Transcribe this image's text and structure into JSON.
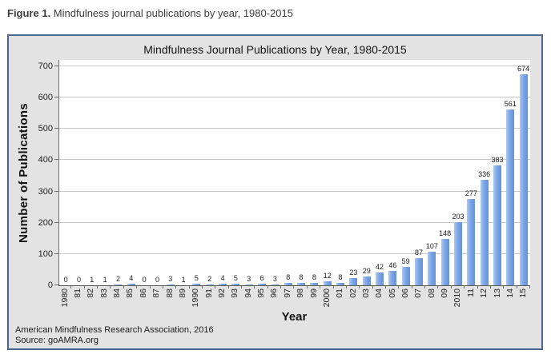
{
  "figure": {
    "caption_label": "Figure 1.",
    "caption_text": " Mindfulness journal publications by year, 1980-2015"
  },
  "chart": {
    "title": "Mindfulness Journal Publications by Year, 1980-2015",
    "x_axis_title": "Year",
    "y_axis_title": "Number of Publications",
    "source_line1": "American Mindfulness Research Association, 2016",
    "source_line2": "Source: goAMRA.org",
    "colors": {
      "panel_bg": "#e3e3e3",
      "panel_border": "#4a688f",
      "plot_bg": "#ffffff",
      "gridline": "#c9c9c9",
      "axis_line": "#707070",
      "bar_left": "#adc9f2",
      "bar_mid": "#7ca5e7",
      "bar_right": "#6591d8"
    }
  },
  "chart_data": {
    "type": "bar",
    "title": "Mindfulness Journal Publications by Year, 1980-2015",
    "xlabel": "Year",
    "ylabel": "Number of Publications",
    "categories": [
      "1980",
      "81",
      "82",
      "83",
      "84",
      "85",
      "86",
      "87",
      "88",
      "89",
      "1990",
      "91",
      "92",
      "93",
      "94",
      "95",
      "96",
      "97",
      "98",
      "99",
      "2000",
      "01",
      "02",
      "03",
      "04",
      "05",
      "06",
      "07",
      "08",
      "09",
      "2010",
      "11",
      "12",
      "13",
      "14",
      "15"
    ],
    "values": [
      0,
      0,
      1,
      1,
      2,
      4,
      0,
      0,
      3,
      1,
      5,
      2,
      4,
      5,
      3,
      6,
      3,
      8,
      8,
      8,
      12,
      8,
      23,
      29,
      42,
      46,
      59,
      87,
      107,
      148,
      203,
      277,
      336,
      383,
      561,
      674
    ],
    "ylim": [
      0,
      700
    ],
    "yticks": [
      0,
      100,
      200,
      300,
      400,
      500,
      600,
      700
    ],
    "grid": true,
    "legend_position": "none",
    "data_labels": true
  }
}
